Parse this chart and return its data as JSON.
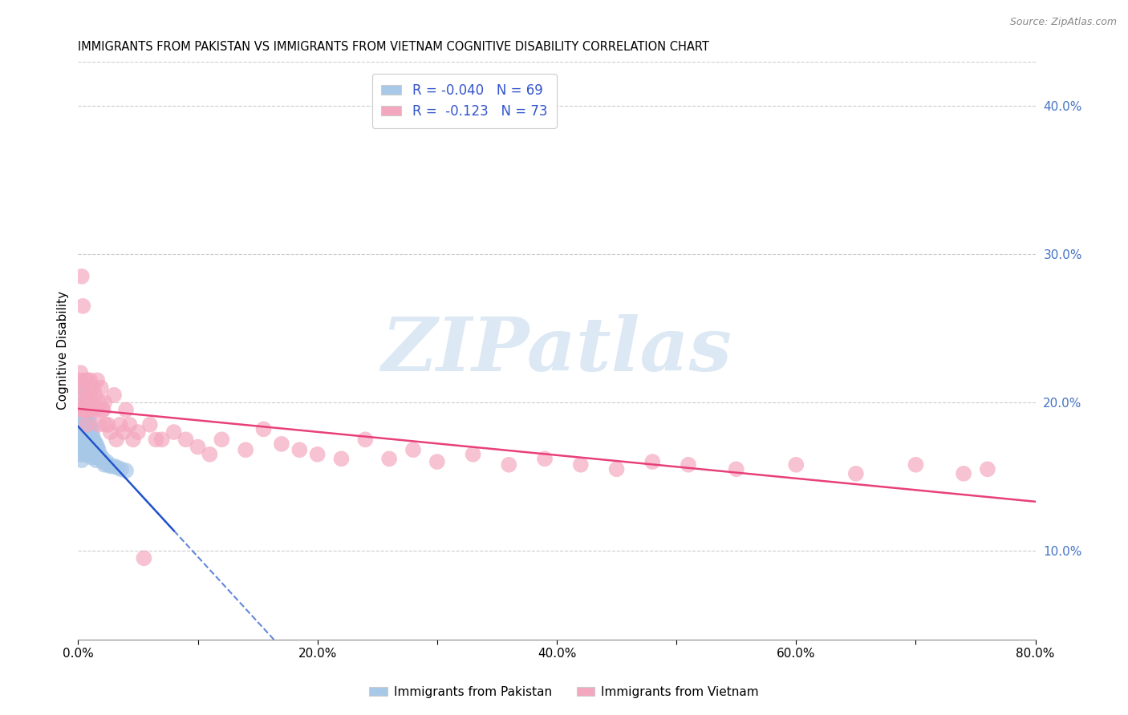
{
  "title": "IMMIGRANTS FROM PAKISTAN VS IMMIGRANTS FROM VIETNAM COGNITIVE DISABILITY CORRELATION CHART",
  "source": "Source: ZipAtlas.com",
  "ylabel": "Cognitive Disability",
  "xlim": [
    0.0,
    0.8
  ],
  "ylim": [
    0.04,
    0.43
  ],
  "x_tick_positions": [
    0.0,
    0.1,
    0.2,
    0.3,
    0.4,
    0.5,
    0.6,
    0.7,
    0.8
  ],
  "x_tick_labels": [
    "0.0%",
    "",
    "20.0%",
    "",
    "40.0%",
    "",
    "60.0%",
    "",
    "80.0%"
  ],
  "y_ticks_right": [
    0.1,
    0.2,
    0.3,
    0.4
  ],
  "y_tick_labels_right": [
    "10.0%",
    "20.0%",
    "30.0%",
    "40.0%"
  ],
  "pakistan_color": "#a8c8e8",
  "vietnam_color": "#f4a8c0",
  "pakistan_line_color": "#2255cc",
  "vietnam_line_color": "#e8407a",
  "watermark_text": "ZIPatlas",
  "watermark_color": "#dce8f4",
  "background_color": "#ffffff",
  "grid_color": "#cccccc",
  "pakistan_N": 69,
  "vietnam_N": 73,
  "pakistan_R": -0.04,
  "vietnam_R": -0.123,
  "pakistan_x": [
    0.001,
    0.001,
    0.001,
    0.002,
    0.002,
    0.002,
    0.002,
    0.002,
    0.003,
    0.003,
    0.003,
    0.003,
    0.003,
    0.003,
    0.004,
    0.004,
    0.004,
    0.004,
    0.004,
    0.005,
    0.005,
    0.005,
    0.005,
    0.005,
    0.005,
    0.006,
    0.006,
    0.006,
    0.006,
    0.006,
    0.007,
    0.007,
    0.007,
    0.007,
    0.008,
    0.008,
    0.008,
    0.008,
    0.009,
    0.009,
    0.009,
    0.01,
    0.01,
    0.01,
    0.011,
    0.011,
    0.011,
    0.012,
    0.012,
    0.013,
    0.013,
    0.014,
    0.014,
    0.015,
    0.015,
    0.016,
    0.017,
    0.018,
    0.019,
    0.02,
    0.021,
    0.022,
    0.024,
    0.025,
    0.027,
    0.03,
    0.033,
    0.036,
    0.04
  ],
  "pakistan_y": [
    0.178,
    0.172,
    0.168,
    0.185,
    0.18,
    0.175,
    0.17,
    0.165,
    0.192,
    0.185,
    0.178,
    0.172,
    0.167,
    0.161,
    0.195,
    0.188,
    0.18,
    0.173,
    0.165,
    0.21,
    0.2,
    0.192,
    0.183,
    0.175,
    0.165,
    0.205,
    0.196,
    0.187,
    0.178,
    0.168,
    0.2,
    0.192,
    0.183,
    0.173,
    0.195,
    0.185,
    0.175,
    0.165,
    0.19,
    0.18,
    0.168,
    0.185,
    0.175,
    0.165,
    0.182,
    0.173,
    0.163,
    0.178,
    0.168,
    0.175,
    0.165,
    0.173,
    0.163,
    0.172,
    0.161,
    0.17,
    0.168,
    0.165,
    0.162,
    0.163,
    0.16,
    0.158,
    0.16,
    0.158,
    0.157,
    0.157,
    0.156,
    0.155,
    0.154
  ],
  "vietnam_x": [
    0.001,
    0.002,
    0.002,
    0.003,
    0.003,
    0.004,
    0.004,
    0.005,
    0.005,
    0.006,
    0.006,
    0.007,
    0.007,
    0.008,
    0.008,
    0.009,
    0.01,
    0.01,
    0.011,
    0.012,
    0.013,
    0.014,
    0.015,
    0.016,
    0.017,
    0.018,
    0.019,
    0.02,
    0.021,
    0.022,
    0.023,
    0.025,
    0.027,
    0.03,
    0.032,
    0.035,
    0.038,
    0.04,
    0.043,
    0.046,
    0.05,
    0.055,
    0.06,
    0.065,
    0.07,
    0.08,
    0.09,
    0.1,
    0.11,
    0.12,
    0.14,
    0.155,
    0.17,
    0.185,
    0.2,
    0.22,
    0.24,
    0.26,
    0.28,
    0.3,
    0.33,
    0.36,
    0.39,
    0.42,
    0.45,
    0.48,
    0.51,
    0.55,
    0.6,
    0.65,
    0.7,
    0.74,
    0.76
  ],
  "vietnam_y": [
    0.215,
    0.22,
    0.195,
    0.285,
    0.21,
    0.265,
    0.195,
    0.205,
    0.195,
    0.215,
    0.2,
    0.195,
    0.185,
    0.215,
    0.2,
    0.195,
    0.215,
    0.205,
    0.2,
    0.195,
    0.21,
    0.205,
    0.195,
    0.215,
    0.185,
    0.2,
    0.21,
    0.195,
    0.195,
    0.2,
    0.185,
    0.185,
    0.18,
    0.205,
    0.175,
    0.185,
    0.18,
    0.195,
    0.185,
    0.175,
    0.18,
    0.095,
    0.185,
    0.175,
    0.175,
    0.18,
    0.175,
    0.17,
    0.165,
    0.175,
    0.168,
    0.182,
    0.172,
    0.168,
    0.165,
    0.162,
    0.175,
    0.162,
    0.168,
    0.16,
    0.165,
    0.158,
    0.162,
    0.158,
    0.155,
    0.16,
    0.158,
    0.155,
    0.158,
    0.152,
    0.158,
    0.152,
    0.155
  ]
}
